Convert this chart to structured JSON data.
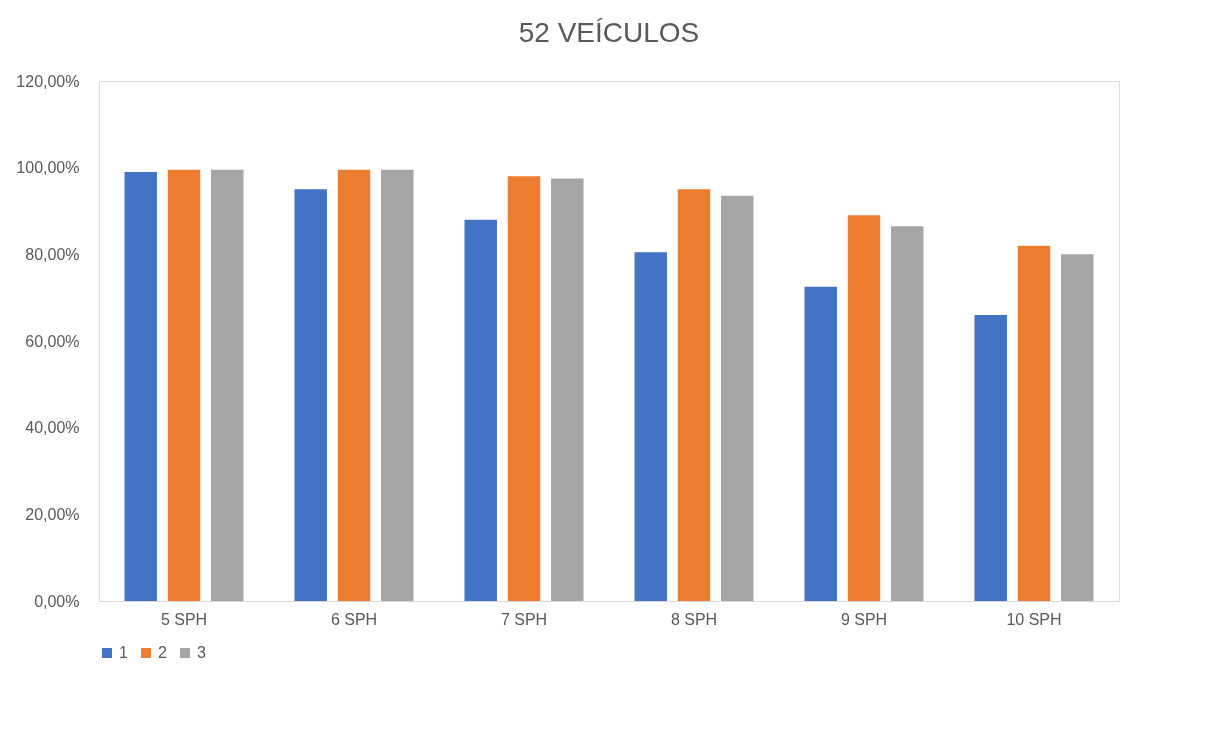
{
  "chart_data": {
    "type": "bar",
    "title": "52 VEÍCULOS",
    "categories": [
      "5 SPH",
      "6 SPH",
      "7 SPH",
      "8 SPH",
      "9 SPH",
      "10 SPH"
    ],
    "series": [
      {
        "name": "1",
        "color": "#4472c4",
        "values": [
          99,
          95,
          88,
          80.5,
          72.5,
          66
        ]
      },
      {
        "name": "2",
        "color": "#ed7d31",
        "values": [
          99.5,
          99.5,
          98,
          95,
          89,
          82
        ]
      },
      {
        "name": "3",
        "color": "#a5a5a5",
        "values": [
          99.5,
          99.5,
          97.5,
          93.5,
          86.5,
          80
        ]
      }
    ],
    "ylim": [
      0,
      120
    ],
    "yticks": [
      {
        "value": 0,
        "label": "0,00%"
      },
      {
        "value": 20,
        "label": "20,00%"
      },
      {
        "value": 40,
        "label": "40,00%"
      },
      {
        "value": 60,
        "label": "60,00%"
      },
      {
        "value": 80,
        "label": "80,00%"
      },
      {
        "value": 100,
        "label": "100,00%"
      },
      {
        "value": 120,
        "label": "120,00%"
      }
    ],
    "grid": false,
    "legend": "bottom"
  }
}
